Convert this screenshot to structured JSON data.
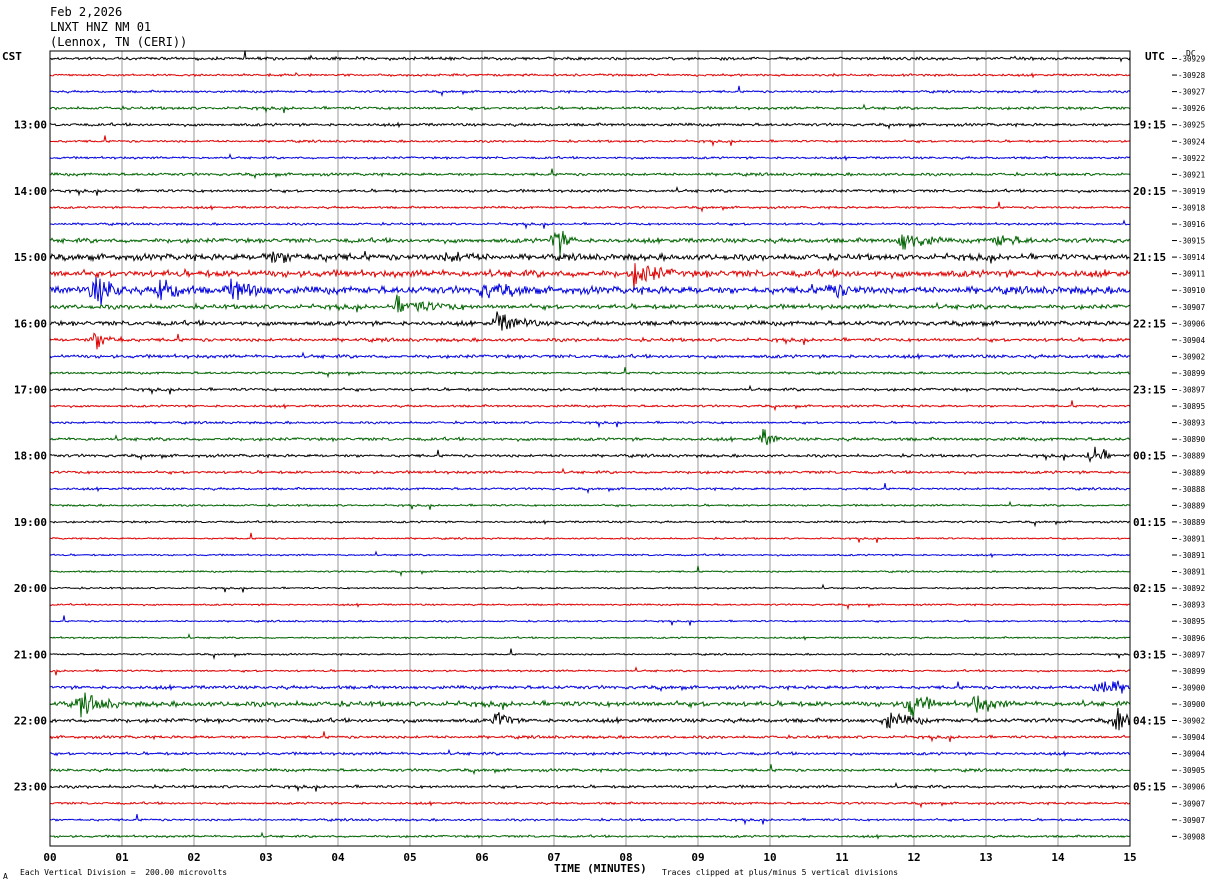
{
  "header": {
    "date": "Feb 2,2026",
    "station": "LNXT HNZ NM 01",
    "location": "(Lennox, TN (CERI))"
  },
  "left_timezone": "CST",
  "right_timezone": "UTC",
  "dc_label": "DC",
  "footer": {
    "scale_note": "Each Vertical Division =  200.00 microvolts",
    "clip_note": "Traces clipped at plus/minus 5 vertical divisions",
    "corner_mark": "A"
  },
  "colors": {
    "trace_cycle": [
      "#000000",
      "#e00000",
      "#0000e0",
      "#006400"
    ],
    "grid": "#9a9a9a"
  },
  "chart_data": {
    "type": "line",
    "title": "",
    "xlabel": "TIME (MINUTES)",
    "xlim": [
      0,
      15
    ],
    "x_ticks": [
      "00",
      "01",
      "02",
      "03",
      "04",
      "05",
      "06",
      "07",
      "08",
      "09",
      "10",
      "11",
      "12",
      "13",
      "14",
      "15"
    ],
    "trace_count": 48,
    "left_hour_labels": [
      "13:00",
      "14:00",
      "15:00",
      "16:00",
      "17:00",
      "18:00",
      "19:00",
      "20:00",
      "21:00",
      "22:00",
      "23:00"
    ],
    "right_hour_labels": [
      "19:15",
      "20:15",
      "21:15",
      "22:15",
      "23:15",
      "00:15",
      "01:15",
      "02:15",
      "03:15",
      "04:15",
      "05:15"
    ],
    "hour_label_first_trace": 4,
    "hour_label_every": 4,
    "dc_offsets": [
      "-30929",
      "-30928",
      "-30927",
      "-30926",
      "-30925",
      "-30924",
      "-30922",
      "-30921",
      "-30919",
      "-30918",
      "-30916",
      "-30915",
      "-30914",
      "-30911",
      "-30910",
      "-30907",
      "-30906",
      "-30904",
      "-30902",
      "-30899",
      "-30897",
      "-30895",
      "-30893",
      "-30890",
      "-30889",
      "-30889",
      "-30888",
      "-30889",
      "-30889",
      "-30891",
      "-30891",
      "-30891",
      "-30892",
      "-30893",
      "-30895",
      "-30896",
      "-30897",
      "-30899",
      "-30900",
      "-30900",
      "-30902",
      "-30904",
      "-30904",
      "-30905",
      "-30906",
      "-30907",
      "-30907",
      "-30908"
    ],
    "noise_levels": [
      1,
      0.8,
      0.8,
      1,
      1,
      0.8,
      0.8,
      1,
      1,
      0.8,
      0.8,
      1.6,
      2.2,
      2.4,
      2.6,
      1.6,
      1.6,
      1.2,
      1.2,
      0.8,
      1,
      0.8,
      0.8,
      1.1,
      1,
      1,
      0.8,
      0.7,
      0.7,
      0.6,
      0.6,
      0.6,
      0.6,
      0.6,
      0.6,
      0.6,
      0.6,
      0.7,
      1.2,
      1.8,
      1.4,
      1,
      1,
      1,
      1,
      0.8,
      0.8,
      0.8
    ],
    "events": [
      {
        "trace": 11,
        "minute": 7.0,
        "amplitude": 14,
        "duration": 0.3
      },
      {
        "trace": 11,
        "minute": 11.8,
        "amplitude": 9,
        "duration": 0.6
      },
      {
        "trace": 11,
        "minute": 13.1,
        "amplitude": 5,
        "duration": 0.6
      },
      {
        "trace": 12,
        "minute": 3.0,
        "amplitude": 4,
        "duration": 1.2
      },
      {
        "trace": 12,
        "minute": 5.5,
        "amplitude": 4,
        "duration": 0.6
      },
      {
        "trace": 13,
        "minute": 8.1,
        "amplitude": 10,
        "duration": 0.6
      },
      {
        "trace": 14,
        "minute": 0.6,
        "amplitude": 14,
        "duration": 0.5
      },
      {
        "trace": 14,
        "minute": 1.5,
        "amplitude": 10,
        "duration": 0.5
      },
      {
        "trace": 14,
        "minute": 2.5,
        "amplitude": 10,
        "duration": 0.6
      },
      {
        "trace": 14,
        "minute": 6.0,
        "amplitude": 5,
        "duration": 0.8
      },
      {
        "trace": 14,
        "minute": 10.8,
        "amplitude": 5,
        "duration": 0.6
      },
      {
        "trace": 15,
        "minute": 4.8,
        "amplitude": 6,
        "duration": 1.0
      },
      {
        "trace": 16,
        "minute": 6.2,
        "amplitude": 8,
        "duration": 0.6
      },
      {
        "trace": 17,
        "minute": 0.6,
        "amplitude": 8,
        "duration": 0.5
      },
      {
        "trace": 23,
        "minute": 9.9,
        "amplitude": 8,
        "duration": 0.3
      },
      {
        "trace": 24,
        "minute": 14.4,
        "amplitude": 11,
        "duration": 0.4
      },
      {
        "trace": 38,
        "minute": 14.5,
        "amplitude": 8,
        "duration": 0.9
      },
      {
        "trace": 39,
        "minute": 0.4,
        "amplitude": 8,
        "duration": 0.6
      },
      {
        "trace": 39,
        "minute": 11.9,
        "amplitude": 14,
        "duration": 0.4
      },
      {
        "trace": 39,
        "minute": 12.8,
        "amplitude": 9,
        "duration": 0.5
      },
      {
        "trace": 40,
        "minute": 6.2,
        "amplitude": 11,
        "duration": 0.3
      },
      {
        "trace": 40,
        "minute": 11.6,
        "amplitude": 7,
        "duration": 0.6
      },
      {
        "trace": 40,
        "minute": 14.8,
        "amplitude": 12,
        "duration": 0.4
      }
    ]
  }
}
